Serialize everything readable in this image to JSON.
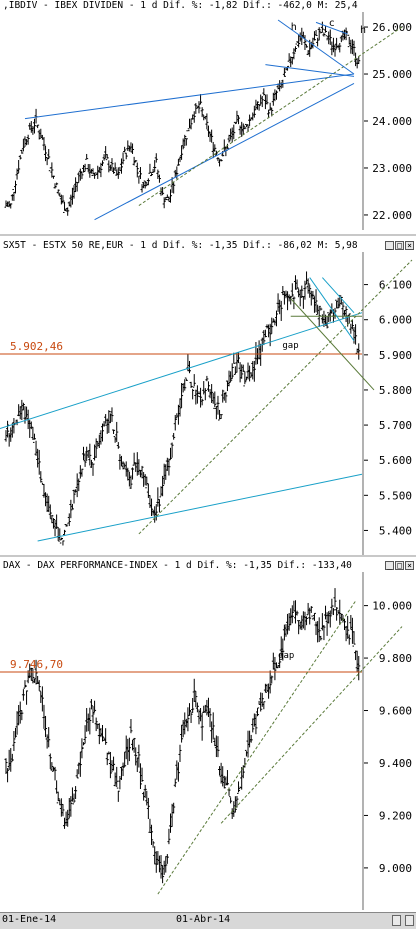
{
  "panels": [
    {
      "title": ",IBDIV - IBEX DIVIDEN - 1 d Dif. %: -1,82 Dif.: -462,0 M: 25,4",
      "marks": [
        "h",
        "c",
        "h"
      ],
      "chart_data": {
        "type": "candlestick",
        "title": ",IBDIV - IBEX DIVIDEN - 1 d Dif. %: -1,82 Dif.: -462,0 M: 25,4",
        "yticks": [
          "26.000",
          "25.000",
          "24.000",
          "23.000",
          "22.000"
        ],
        "ylim": [
          21.85,
          26.15
        ],
        "trendlines": [
          "channel",
          "support",
          "neckline",
          "head-and-shoulders"
        ],
        "close_series": [
          22.2,
          22.9,
          23.5,
          23.8,
          24.0,
          23.6,
          23.2,
          22.7,
          22.3,
          22.1,
          22.5,
          22.9,
          23.1,
          22.8,
          23.0,
          23.2,
          23.0,
          22.8,
          23.3,
          23.5,
          23.0,
          22.6,
          22.9,
          23.1,
          22.4,
          22.3,
          22.8,
          23.4,
          23.8,
          24.2,
          24.3,
          23.9,
          23.5,
          23.2,
          23.4,
          23.7,
          24.0,
          23.8,
          24.1,
          24.3,
          24.5,
          24.2,
          24.6,
          24.8,
          25.2,
          25.6,
          25.8,
          25.5,
          25.7,
          25.9,
          25.8,
          25.6,
          25.7,
          25.8,
          25.6,
          25.2
        ]
      }
    },
    {
      "title": "SX5T - ESTX 50 RE,EUR - 1 d Dif. %: -1,35 Dif.: -86,02 M: 5,98",
      "level_label": "5.902,46",
      "gap_label": "gap",
      "chart_data": {
        "type": "candlestick",
        "title": "SX5T - ESTX 50 RE,EUR - 1 d Dif. %: -1,35 Dif.: -86,02 M: 5,98",
        "yticks": [
          "6.100",
          "6.000",
          "5.900",
          "5.800",
          "5.700",
          "5.600",
          "5.500",
          "5.400"
        ],
        "ylim": [
          5.35,
          6.17
        ],
        "levels": [
          5.90246
        ],
        "close_series": [
          5.69,
          5.72,
          5.74,
          5.71,
          5.63,
          5.52,
          5.46,
          5.4,
          5.37,
          5.42,
          5.5,
          5.57,
          5.62,
          5.59,
          5.66,
          5.7,
          5.72,
          5.64,
          5.58,
          5.55,
          5.6,
          5.56,
          5.48,
          5.45,
          5.52,
          5.6,
          5.7,
          5.79,
          5.85,
          5.8,
          5.76,
          5.82,
          5.78,
          5.73,
          5.8,
          5.86,
          5.88,
          5.82,
          5.85,
          5.9,
          5.94,
          5.98,
          6.02,
          6.06,
          6.05,
          6.09,
          6.07,
          6.11,
          6.06,
          6.02,
          5.99,
          6.02,
          6.06,
          6.04,
          5.98,
          5.9
        ]
      }
    },
    {
      "title": "DAX - DAX PERFORMANCE-INDEX - 1 d Dif. %: -1,35 Dif.: -133,40",
      "level_label": "9.746,70",
      "gap_label": "gap",
      "chart_data": {
        "type": "candlestick",
        "title": "DAX - DAX PERFORMANCE-INDEX - 1 d Dif. %: -1,35 Dif.: -133,40",
        "yticks": [
          "10.000",
          "9.800",
          "9.600",
          "9.400",
          "9.200",
          "9.000"
        ],
        "ylim": [
          8.87,
          10.09
        ],
        "levels": [
          9.7467
        ],
        "close_series": [
          9.4,
          9.52,
          9.65,
          9.75,
          9.73,
          9.62,
          9.48,
          9.35,
          9.22,
          9.18,
          9.28,
          9.42,
          9.55,
          9.62,
          9.52,
          9.46,
          9.38,
          9.32,
          9.4,
          9.5,
          9.44,
          9.3,
          9.18,
          9.05,
          8.96,
          9.1,
          9.3,
          9.48,
          9.58,
          9.65,
          9.55,
          9.6,
          9.52,
          9.4,
          9.32,
          9.22,
          9.28,
          9.4,
          9.5,
          9.58,
          9.66,
          9.72,
          9.78,
          9.85,
          9.92,
          9.97,
          9.94,
          9.99,
          9.95,
          9.9,
          9.96,
          10.01,
          9.98,
          9.92,
          9.88,
          9.76
        ]
      }
    }
  ],
  "date_axis": [
    "01-Ene-14",
    "01-Abr-14"
  ],
  "colors": {
    "candle": "#000000",
    "blue_line": "#1f6fd0",
    "cyan_line": "#19a0c8",
    "trend_green": "#5a7a3a",
    "level_line": "#c84a10",
    "level_text": "#c84a10"
  }
}
